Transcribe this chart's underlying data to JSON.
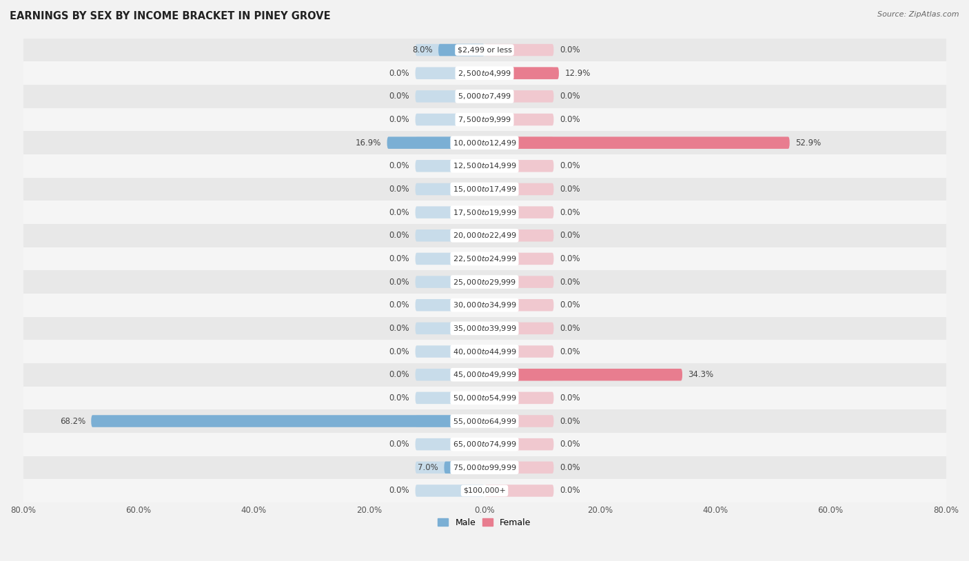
{
  "title": "EARNINGS BY SEX BY INCOME BRACKET IN PINEY GROVE",
  "source": "Source: ZipAtlas.com",
  "categories": [
    "$2,499 or less",
    "$2,500 to $4,999",
    "$5,000 to $7,499",
    "$7,500 to $9,999",
    "$10,000 to $12,499",
    "$12,500 to $14,999",
    "$15,000 to $17,499",
    "$17,500 to $19,999",
    "$20,000 to $22,499",
    "$22,500 to $24,999",
    "$25,000 to $29,999",
    "$30,000 to $34,999",
    "$35,000 to $39,999",
    "$40,000 to $44,999",
    "$45,000 to $49,999",
    "$50,000 to $54,999",
    "$55,000 to $64,999",
    "$65,000 to $74,999",
    "$75,000 to $99,999",
    "$100,000+"
  ],
  "male_values": [
    8.0,
    0.0,
    0.0,
    0.0,
    16.9,
    0.0,
    0.0,
    0.0,
    0.0,
    0.0,
    0.0,
    0.0,
    0.0,
    0.0,
    0.0,
    0.0,
    68.2,
    0.0,
    7.0,
    0.0
  ],
  "female_values": [
    0.0,
    12.9,
    0.0,
    0.0,
    52.9,
    0.0,
    0.0,
    0.0,
    0.0,
    0.0,
    0.0,
    0.0,
    0.0,
    0.0,
    34.3,
    0.0,
    0.0,
    0.0,
    0.0,
    0.0
  ],
  "male_color": "#7bafd4",
  "female_color": "#e87d8f",
  "bar_bg_male": "#c8dcea",
  "bar_bg_female": "#f0c8cf",
  "axis_limit": 80.0,
  "bg_color": "#f2f2f2",
  "row_bg_even": "#e8e8e8",
  "row_bg_odd": "#f5f5f5",
  "title_fontsize": 10.5,
  "label_fontsize": 8.5,
  "category_fontsize": 8.0,
  "tick_fontsize": 8.5,
  "default_bar_half": 12.0
}
